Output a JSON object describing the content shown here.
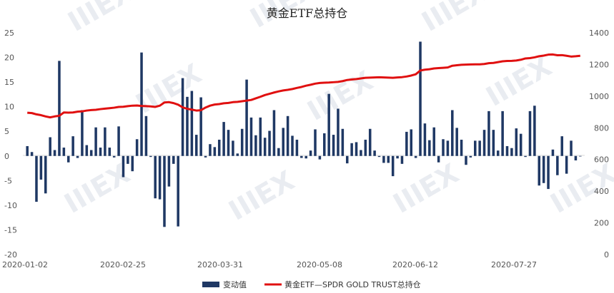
{
  "chart_data": {
    "type": "bar+line",
    "title": "黄金ETF总持仓",
    "x_tick_labels": [
      "2020-01-02",
      "2020-02-25",
      "2020-03-31",
      "2020-05-08",
      "2020-06-12",
      "2020-07-27"
    ],
    "y_left": {
      "ticks": [
        25,
        20,
        15,
        10,
        5,
        0,
        -5,
        -10,
        -15,
        -20
      ],
      "ylim": [
        -20,
        25
      ]
    },
    "y_right": {
      "ticks": [
        1400,
        1200,
        1000,
        800,
        600,
        400,
        200,
        0
      ],
      "ylim": [
        0,
        1400
      ]
    },
    "series": [
      {
        "name": "变动值",
        "kind": "bar",
        "axis": "left",
        "color": "#1f3864",
        "values": [
          2,
          0.8,
          -9.3,
          -4.8,
          -7.6,
          3.8,
          1.2,
          19.3,
          1.7,
          -1.3,
          4,
          -0.4,
          9.3,
          2.2,
          1.2,
          5.8,
          1.7,
          5.8,
          1.7,
          -0.3,
          6,
          -4.3,
          -1.6,
          -3.1,
          3.4,
          21,
          8.1,
          -0.2,
          -8.6,
          -8.8,
          -14.4,
          -6.2,
          -1.6,
          -14.3,
          15.8,
          12,
          13.2,
          4.3,
          11.9,
          -0.3,
          2.4,
          1.8,
          3.3,
          6.9,
          5.3,
          3.1,
          0.5,
          5.5,
          15.5,
          7.8,
          4.2,
          7.8,
          3.7,
          5.1,
          9.3,
          1.6,
          5.7,
          8.1,
          4.1,
          3.3,
          -0.4,
          -0.5,
          1.1,
          5.4,
          -0.7,
          4.6,
          12.6,
          4.3,
          9.6,
          5.5,
          -1.5,
          2.6,
          2.8,
          1.2,
          3.3,
          5.5,
          1.1,
          -0.2,
          -1.4,
          -1.4,
          -4.1,
          -0.5,
          -1.6,
          4.9,
          5.4,
          -0.4,
          23.2,
          6.6,
          3.2,
          5.8,
          -1.3,
          3.4,
          3.1,
          9.3,
          5.7,
          3.3,
          -1.8,
          -0.3,
          3.1,
          3.1,
          5.3,
          9.1,
          5.3,
          1.1,
          9.1,
          2,
          1.6,
          5.6,
          4.5,
          -0.2,
          9.1,
          10.2,
          -6,
          -5.5,
          -6.7,
          1.3,
          -3.9,
          4,
          -3.6,
          3.1,
          -0.9,
          -0.1
        ]
      },
      {
        "name": "黄金ETF—SPDR GOLD TRUST总持仓",
        "kind": "line",
        "axis": "right",
        "color": "#e01010",
        "values": [
          895,
          893,
          885,
          880,
          872,
          866,
          872,
          876,
          897,
          896,
          897,
          902,
          904,
          909,
          912,
          914,
          918,
          921,
          924,
          927,
          932,
          933,
          937,
          940,
          941,
          938,
          937,
          935,
          932,
          940,
          960,
          962,
          956,
          946,
          929,
          920,
          915,
          909,
          911,
          928,
          940,
          947,
          950,
          955,
          957,
          962,
          964,
          968,
          972,
          976,
          986,
          996,
          1007,
          1015,
          1023,
          1030,
          1036,
          1040,
          1045,
          1052,
          1058,
          1066,
          1072,
          1079,
          1083,
          1085,
          1086,
          1088,
          1090,
          1095,
          1102,
          1105,
          1108,
          1112,
          1116,
          1117,
          1118,
          1119,
          1118,
          1117,
          1116,
          1118,
          1120,
          1124,
          1130,
          1138,
          1162,
          1167,
          1170,
          1175,
          1177,
          1179,
          1181,
          1192,
          1195,
          1198,
          1199,
          1200,
          1201,
          1201,
          1203,
          1208,
          1210,
          1215,
          1220,
          1222,
          1223,
          1225,
          1230,
          1238,
          1240,
          1245,
          1252,
          1256,
          1262,
          1263,
          1258,
          1259,
          1255,
          1250,
          1252,
          1255
        ]
      }
    ],
    "legend_position": "bottom"
  }
}
